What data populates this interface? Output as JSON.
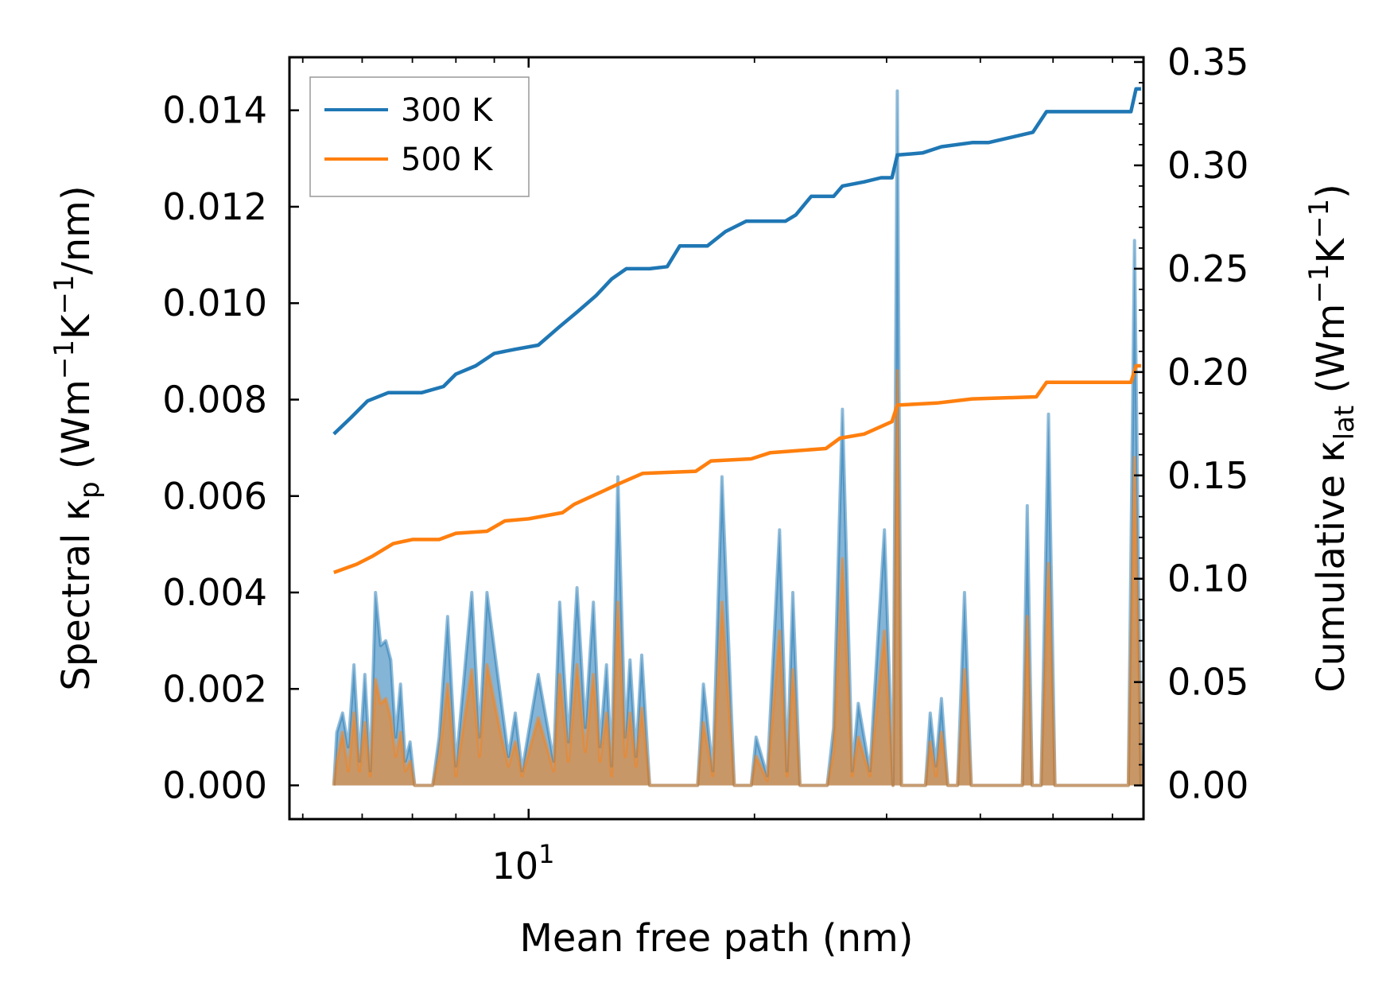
{
  "chart_data": {
    "type": "line",
    "x_scale": "log",
    "xlabel": "Mean free path (nm)",
    "ylabel_left": {
      "main": "Spectral κ",
      "sub": "p",
      "units": "(Wm",
      "units_sup1": "−1",
      "units_mid": "K",
      "units_sup2": "−1",
      "units_end": "/nm)"
    },
    "ylabel_right": {
      "main": "Cumulative κ",
      "sub": "lat",
      "units": "(Wm",
      "units_sup1": "−1",
      "units_mid": "K",
      "units_sup2": "−1",
      "units_end": ")"
    },
    "xlim": [
      4.8,
      66
    ],
    "ylim_left": [
      -0.0007,
      0.0151
    ],
    "ylim_right": [
      -0.0163,
      0.3523
    ],
    "x_tick": {
      "value": 10,
      "base": "10",
      "exp": "1"
    },
    "left_ticks": [
      {
        "value": 0.0,
        "label": "0.000"
      },
      {
        "value": 0.002,
        "label": "0.002"
      },
      {
        "value": 0.004,
        "label": "0.004"
      },
      {
        "value": 0.006,
        "label": "0.006"
      },
      {
        "value": 0.008,
        "label": "0.008"
      },
      {
        "value": 0.01,
        "label": "0.010"
      },
      {
        "value": 0.012,
        "label": "0.012"
      },
      {
        "value": 0.014,
        "label": "0.014"
      }
    ],
    "right_ticks": [
      {
        "value": 0.0,
        "label": "0.00"
      },
      {
        "value": 0.05,
        "label": "0.05"
      },
      {
        "value": 0.1,
        "label": "0.10"
      },
      {
        "value": 0.15,
        "label": "0.15"
      },
      {
        "value": 0.2,
        "label": "0.20"
      },
      {
        "value": 0.25,
        "label": "0.25"
      },
      {
        "value": 0.3,
        "label": "0.30"
      },
      {
        "value": 0.35,
        "label": "0.35"
      }
    ],
    "legend": {
      "position": "upper-left",
      "entries": [
        "300 K",
        "500 K"
      ]
    },
    "series": [
      {
        "name": "300 K",
        "color": "#1f77b4",
        "cumulative": [
          [
            5.5,
            0.17
          ],
          [
            5.8,
            0.178
          ],
          [
            6.1,
            0.186
          ],
          [
            6.5,
            0.19
          ],
          [
            7.2,
            0.19
          ],
          [
            7.7,
            0.193
          ],
          [
            8.0,
            0.199
          ],
          [
            8.5,
            0.203
          ],
          [
            9.0,
            0.209
          ],
          [
            9.6,
            0.211
          ],
          [
            10.3,
            0.213
          ],
          [
            11.0,
            0.222
          ],
          [
            11.6,
            0.229
          ],
          [
            12.3,
            0.237
          ],
          [
            12.9,
            0.245
          ],
          [
            13.5,
            0.25
          ],
          [
            14.5,
            0.25
          ],
          [
            15.3,
            0.251
          ],
          [
            15.9,
            0.261
          ],
          [
            17.3,
            0.261
          ],
          [
            18.3,
            0.268
          ],
          [
            19.5,
            0.273
          ],
          [
            22.0,
            0.273
          ],
          [
            22.7,
            0.276
          ],
          [
            23.8,
            0.285
          ],
          [
            25.5,
            0.285
          ],
          [
            26.2,
            0.29
          ],
          [
            28.0,
            0.292
          ],
          [
            29.5,
            0.294
          ],
          [
            30.5,
            0.294
          ],
          [
            31.0,
            0.305
          ],
          [
            33.5,
            0.306
          ],
          [
            35.5,
            0.309
          ],
          [
            39.0,
            0.311
          ],
          [
            41.0,
            0.311
          ],
          [
            47.0,
            0.316
          ],
          [
            49.0,
            0.326
          ],
          [
            63.5,
            0.326
          ],
          [
            64.5,
            0.337
          ],
          [
            65.5,
            0.337
          ]
        ],
        "spectral": [
          [
            5.5,
            0.0
          ],
          [
            5.55,
            0.0011
          ],
          [
            5.65,
            0.0015
          ],
          [
            5.75,
            0.0008
          ],
          [
            5.85,
            0.0025
          ],
          [
            5.95,
            0.0005
          ],
          [
            6.05,
            0.0023
          ],
          [
            6.15,
            0.0003
          ],
          [
            6.25,
            0.004
          ],
          [
            6.35,
            0.0029
          ],
          [
            6.45,
            0.003
          ],
          [
            6.55,
            0.0026
          ],
          [
            6.65,
            0.001
          ],
          [
            6.75,
            0.0021
          ],
          [
            6.85,
            0.0005
          ],
          [
            6.95,
            0.0009
          ],
          [
            7.05,
            0.0
          ],
          [
            7.45,
            0.0
          ],
          [
            7.6,
            0.001
          ],
          [
            7.8,
            0.0035
          ],
          [
            8.0,
            0.0004
          ],
          [
            8.4,
            0.004
          ],
          [
            8.6,
            0.001
          ],
          [
            8.8,
            0.004
          ],
          [
            9.2,
            0.0017
          ],
          [
            9.4,
            0.0006
          ],
          [
            9.6,
            0.0015
          ],
          [
            9.8,
            0.0003
          ],
          [
            10.3,
            0.0023
          ],
          [
            10.8,
            0.0005
          ],
          [
            11.0,
            0.0038
          ],
          [
            11.3,
            0.0009
          ],
          [
            11.6,
            0.0041
          ],
          [
            11.9,
            0.0012
          ],
          [
            12.2,
            0.0038
          ],
          [
            12.45,
            0.0008
          ],
          [
            12.7,
            0.0025
          ],
          [
            12.9,
            0.0004
          ],
          [
            13.15,
            0.0064
          ],
          [
            13.45,
            0.001
          ],
          [
            13.65,
            0.0026
          ],
          [
            13.9,
            0.0006
          ],
          [
            14.15,
            0.0027
          ],
          [
            14.5,
            0.0
          ],
          [
            16.8,
            0.0
          ],
          [
            17.1,
            0.0021
          ],
          [
            17.6,
            0.0003
          ],
          [
            18.1,
            0.0064
          ],
          [
            18.8,
            0.0
          ],
          [
            19.8,
            0.0
          ],
          [
            20.1,
            0.001
          ],
          [
            20.8,
            0.0002
          ],
          [
            21.6,
            0.0053
          ],
          [
            22.1,
            0.0003
          ],
          [
            22.5,
            0.004
          ],
          [
            23.0,
            0.0
          ],
          [
            25.0,
            0.0
          ],
          [
            25.5,
            0.0012
          ],
          [
            26.2,
            0.0078
          ],
          [
            27.0,
            0.0003
          ],
          [
            27.5,
            0.0017
          ],
          [
            28.5,
            0.0003
          ],
          [
            29.8,
            0.0053
          ],
          [
            30.6,
            0.0
          ],
          [
            31.0,
            0.0144
          ],
          [
            31.4,
            0.0
          ],
          [
            33.8,
            0.0
          ],
          [
            34.3,
            0.0015
          ],
          [
            34.9,
            0.0004
          ],
          [
            35.5,
            0.0018
          ],
          [
            36.2,
            0.0
          ],
          [
            37.3,
            0.0
          ],
          [
            38.1,
            0.004
          ],
          [
            38.9,
            0.0
          ],
          [
            45.5,
            0.0
          ],
          [
            46.2,
            0.0058
          ],
          [
            46.9,
            0.0
          ],
          [
            48.2,
            0.0
          ],
          [
            49.3,
            0.0077
          ],
          [
            50.3,
            0.0
          ],
          [
            63.0,
            0.0
          ],
          [
            64.2,
            0.0113
          ],
          [
            65.5,
            0.0
          ]
        ]
      },
      {
        "name": "500 K",
        "color": "#ff7f0e",
        "cumulative": [
          [
            5.5,
            0.103
          ],
          [
            5.9,
            0.107
          ],
          [
            6.2,
            0.111
          ],
          [
            6.6,
            0.117
          ],
          [
            7.0,
            0.119
          ],
          [
            7.6,
            0.119
          ],
          [
            8.0,
            0.122
          ],
          [
            8.8,
            0.123
          ],
          [
            9.3,
            0.128
          ],
          [
            10.0,
            0.129
          ],
          [
            11.1,
            0.132
          ],
          [
            11.5,
            0.136
          ],
          [
            12.5,
            0.142
          ],
          [
            13.2,
            0.146
          ],
          [
            14.2,
            0.151
          ],
          [
            16.7,
            0.152
          ],
          [
            17.5,
            0.157
          ],
          [
            19.8,
            0.158
          ],
          [
            21.0,
            0.161
          ],
          [
            24.9,
            0.163
          ],
          [
            26.0,
            0.168
          ],
          [
            28.0,
            0.17
          ],
          [
            30.5,
            0.176
          ],
          [
            31.0,
            0.184
          ],
          [
            35.0,
            0.185
          ],
          [
            39.0,
            0.187
          ],
          [
            47.5,
            0.188
          ],
          [
            49.0,
            0.195
          ],
          [
            63.5,
            0.195
          ],
          [
            64.5,
            0.203
          ],
          [
            65.5,
            0.203
          ]
        ],
        "spectral": [
          [
            5.5,
            0.0
          ],
          [
            5.55,
            0.0005
          ],
          [
            5.65,
            0.0011
          ],
          [
            5.75,
            0.0003
          ],
          [
            5.85,
            0.0015
          ],
          [
            5.95,
            0.0003
          ],
          [
            6.05,
            0.0013
          ],
          [
            6.15,
            0.0002
          ],
          [
            6.25,
            0.0022
          ],
          [
            6.35,
            0.0017
          ],
          [
            6.45,
            0.0018
          ],
          [
            6.55,
            0.0014
          ],
          [
            6.65,
            0.0006
          ],
          [
            6.75,
            0.0011
          ],
          [
            6.85,
            0.0003
          ],
          [
            6.95,
            0.0005
          ],
          [
            7.05,
            0.0
          ],
          [
            7.45,
            0.0
          ],
          [
            7.6,
            0.0006
          ],
          [
            7.8,
            0.0021
          ],
          [
            8.0,
            0.0002
          ],
          [
            8.4,
            0.0024
          ],
          [
            8.6,
            0.0006
          ],
          [
            8.8,
            0.0025
          ],
          [
            9.2,
            0.001
          ],
          [
            9.4,
            0.0004
          ],
          [
            9.6,
            0.0009
          ],
          [
            9.8,
            0.0002
          ],
          [
            10.3,
            0.0014
          ],
          [
            10.8,
            0.0003
          ],
          [
            11.0,
            0.0023
          ],
          [
            11.3,
            0.0005
          ],
          [
            11.6,
            0.0025
          ],
          [
            11.9,
            0.0007
          ],
          [
            12.2,
            0.0023
          ],
          [
            12.45,
            0.0005
          ],
          [
            12.7,
            0.0015
          ],
          [
            12.9,
            0.0002
          ],
          [
            13.15,
            0.0038
          ],
          [
            13.45,
            0.0006
          ],
          [
            13.65,
            0.0015
          ],
          [
            13.9,
            0.0004
          ],
          [
            14.15,
            0.0016
          ],
          [
            14.5,
            0.0
          ],
          [
            16.8,
            0.0
          ],
          [
            17.1,
            0.0013
          ],
          [
            17.6,
            0.0002
          ],
          [
            18.1,
            0.0038
          ],
          [
            18.8,
            0.0
          ],
          [
            19.8,
            0.0
          ],
          [
            20.1,
            0.0006
          ],
          [
            20.8,
            0.0001
          ],
          [
            21.6,
            0.0032
          ],
          [
            22.1,
            0.0002
          ],
          [
            22.5,
            0.0024
          ],
          [
            23.0,
            0.0
          ],
          [
            25.0,
            0.0
          ],
          [
            25.5,
            0.0007
          ],
          [
            26.2,
            0.0047
          ],
          [
            27.0,
            0.0002
          ],
          [
            27.5,
            0.001
          ],
          [
            28.5,
            0.0002
          ],
          [
            29.8,
            0.0032
          ],
          [
            30.6,
            0.0
          ],
          [
            31.0,
            0.0086
          ],
          [
            31.4,
            0.0
          ],
          [
            33.8,
            0.0
          ],
          [
            34.3,
            0.0009
          ],
          [
            34.9,
            0.0002
          ],
          [
            35.5,
            0.0011
          ],
          [
            36.2,
            0.0
          ],
          [
            37.3,
            0.0
          ],
          [
            38.1,
            0.0024
          ],
          [
            38.9,
            0.0
          ],
          [
            45.5,
            0.0
          ],
          [
            46.2,
            0.0035
          ],
          [
            46.9,
            0.0
          ],
          [
            48.2,
            0.0
          ],
          [
            49.3,
            0.0046
          ],
          [
            50.3,
            0.0
          ],
          [
            63.0,
            0.0
          ],
          [
            64.2,
            0.0068
          ],
          [
            65.5,
            0.0
          ]
        ]
      }
    ]
  }
}
